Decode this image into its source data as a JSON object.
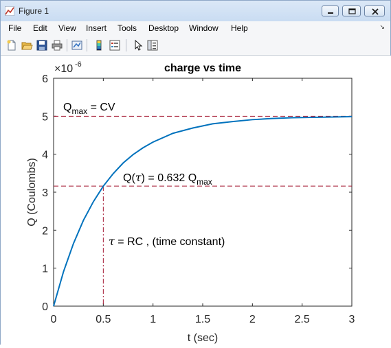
{
  "window": {
    "title": "Figure 1"
  },
  "menu": {
    "items": [
      "File",
      "Edit",
      "View",
      "Insert",
      "Tools",
      "Desktop",
      "Window",
      "Help"
    ]
  },
  "toolbar": {
    "icons": [
      "new-figure-icon",
      "open-file-icon",
      "save-icon",
      "print-icon",
      "link-plot-icon",
      "insert-colorbar-icon",
      "insert-legend-icon",
      "edit-plot-icon",
      "property-inspector-icon"
    ]
  },
  "colors": {
    "curve": "#0072bd",
    "reference_lines": "#a2142f"
  },
  "chart_data": {
    "type": "line",
    "title": "charge vs time",
    "xlabel": "t (sec)",
    "ylabel": "Q (Coulombs)",
    "y_exponent_label": "×10",
    "y_exponent": "-6",
    "xlim": [
      0,
      3
    ],
    "ylim": [
      0,
      6e-06
    ],
    "x_ticks": [
      0,
      0.5,
      1,
      1.5,
      2,
      2.5,
      3
    ],
    "x_tick_labels": [
      "0",
      "0.5",
      "1",
      "1.5",
      "2",
      "2.5",
      "3"
    ],
    "y_ticks": [
      0,
      1e-06,
      2e-06,
      3e-06,
      4e-06,
      5e-06,
      6e-06
    ],
    "y_tick_labels": [
      "0",
      "1",
      "2",
      "3",
      "4",
      "5",
      "6"
    ],
    "grid": false,
    "series": [
      {
        "x": [
          0,
          0.1,
          0.2,
          0.3,
          0.4,
          0.5,
          0.6,
          0.7,
          0.8,
          0.9,
          1.0,
          1.2,
          1.4,
          1.6,
          1.8,
          2.0,
          2.2,
          2.4,
          2.6,
          2.8,
          3.0
        ],
        "values": [
          0,
          9.1e-07,
          1.65e-06,
          2.26e-06,
          2.75e-06,
          3.16e-06,
          3.49e-06,
          3.77e-06,
          3.99e-06,
          4.17e-06,
          4.32e-06,
          4.55e-06,
          4.69e-06,
          4.8e-06,
          4.86e-06,
          4.91e-06,
          4.94e-06,
          4.96e-06,
          4.97e-06,
          4.98e-06,
          4.99e-06
        ]
      }
    ],
    "reference_lines": {
      "qmax_y": 5e-06,
      "q_tau_y": 3.16e-06,
      "tau_x": 0.5
    },
    "annotations": {
      "qmax": {
        "main": "Q",
        "sub": "max",
        "rest": " = CV"
      },
      "q_tau": {
        "pre": "Q(",
        "tau": "τ",
        "mid": ") = 0.632 Q",
        "sub": "max"
      },
      "tau_eq": {
        "tau": "τ",
        "rest": " = RC , (time constant)"
      }
    }
  }
}
